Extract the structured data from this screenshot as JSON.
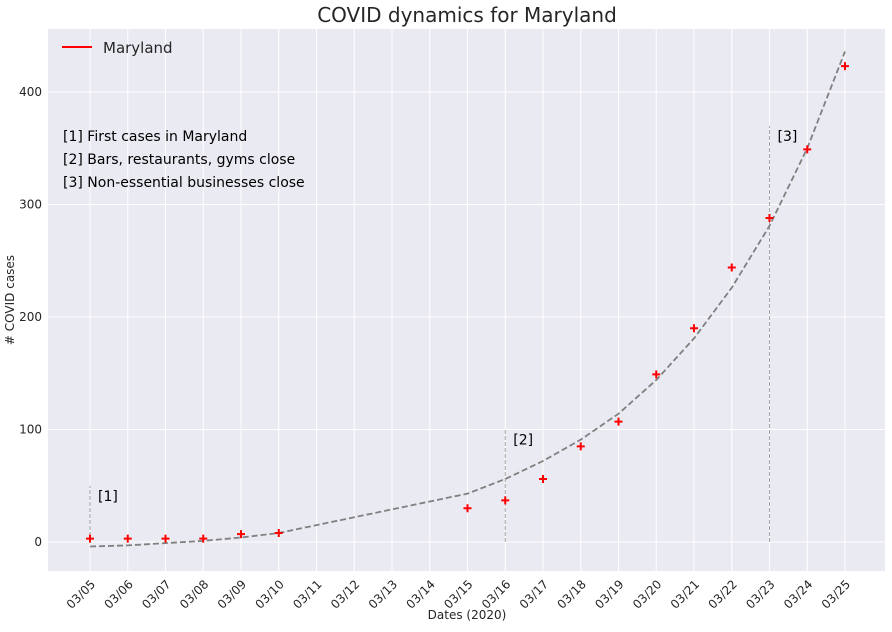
{
  "chart_data": {
    "type": "line",
    "title": "COVID dynamics for Maryland",
    "xlabel": "Dates (2020)",
    "ylabel": "# COVID cases",
    "categories": [
      "03/05",
      "03/06",
      "03/07",
      "03/08",
      "03/09",
      "03/10",
      "03/11",
      "03/12",
      "03/13",
      "03/14",
      "03/15",
      "03/16",
      "03/17",
      "03/18",
      "03/19",
      "03/20",
      "03/21",
      "03/22",
      "03/23",
      "03/24",
      "03/25"
    ],
    "ylim": [
      -25,
      458
    ],
    "yticks": [
      0,
      100,
      200,
      300,
      400
    ],
    "grid": true,
    "legend_position": "top-left",
    "series": [
      {
        "name": "Maryland",
        "style": "marker-plus",
        "color": "#ff0000",
        "points": [
          {
            "x": "03/05",
            "y": 3
          },
          {
            "x": "03/06",
            "y": 3
          },
          {
            "x": "03/07",
            "y": 3
          },
          {
            "x": "03/08",
            "y": 3
          },
          {
            "x": "03/09",
            "y": 7
          },
          {
            "x": "03/10",
            "y": 8
          },
          {
            "x": "03/15",
            "y": 30
          },
          {
            "x": "03/16",
            "y": 37
          },
          {
            "x": "03/17",
            "y": 56
          },
          {
            "x": "03/18",
            "y": 85
          },
          {
            "x": "03/19",
            "y": 107
          },
          {
            "x": "03/20",
            "y": 149
          },
          {
            "x": "03/21",
            "y": 190
          },
          {
            "x": "03/22",
            "y": 244
          },
          {
            "x": "03/23",
            "y": 288
          },
          {
            "x": "03/24",
            "y": 349
          },
          {
            "x": "03/25",
            "y": 423
          }
        ]
      },
      {
        "style": "dashed-fit",
        "color": "#808080",
        "points": [
          {
            "x": "03/05",
            "y": -4
          },
          {
            "x": "03/06",
            "y": -3
          },
          {
            "x": "03/07",
            "y": -1
          },
          {
            "x": "03/08",
            "y": 1
          },
          {
            "x": "03/09",
            "y": 4
          },
          {
            "x": "03/10",
            "y": 8
          },
          {
            "x": "03/11",
            "y": 15
          },
          {
            "x": "03/12",
            "y": 22
          },
          {
            "x": "03/13",
            "y": 29
          },
          {
            "x": "03/14",
            "y": 36
          },
          {
            "x": "03/15",
            "y": 43
          },
          {
            "x": "03/16",
            "y": 56
          },
          {
            "x": "03/17",
            "y": 72
          },
          {
            "x": "03/18",
            "y": 91
          },
          {
            "x": "03/19",
            "y": 114
          },
          {
            "x": "03/20",
            "y": 144
          },
          {
            "x": "03/21",
            "y": 181
          },
          {
            "x": "03/22",
            "y": 226
          },
          {
            "x": "03/23",
            "y": 281
          },
          {
            "x": "03/24",
            "y": 350
          },
          {
            "x": "03/25",
            "y": 436
          }
        ]
      }
    ],
    "events": [
      {
        "label": "[1]",
        "x": "03/05",
        "y_top": 50
      },
      {
        "label": "[2]",
        "x": "03/16",
        "y_top": 100
      },
      {
        "label": "[3]",
        "x": "03/23",
        "y_top": 370
      }
    ],
    "notes": [
      "[1] First cases in Maryland",
      "[2] Bars, restaurants, gyms close",
      "[3] Non-essential businesses close"
    ],
    "colors": {
      "plot_background": "#eaeaf2",
      "grid": "#ffffff",
      "data_marker": "#ff0000",
      "fit_line": "#808080",
      "event_line": "#a6a6a6"
    }
  }
}
